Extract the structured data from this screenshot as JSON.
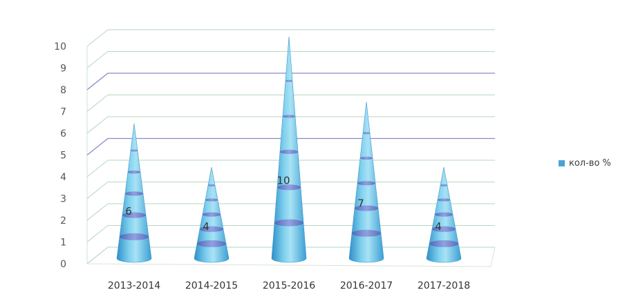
{
  "chart_data": {
    "type": "bar",
    "bar_shape": "cone",
    "categories": [
      "2013-2014",
      "2014-2015",
      "2015-2016",
      "2016-2017",
      "2017-2018"
    ],
    "series": [
      {
        "name": "кол-во %",
        "values": [
          6,
          4,
          10,
          7,
          4
        ]
      }
    ],
    "data_labels": [
      "6",
      "4",
      "10",
      "7",
      "4"
    ],
    "yticks": [
      "0",
      "1",
      "2",
      "3",
      "4",
      "5",
      "6",
      "7",
      "8",
      "9",
      "10"
    ],
    "ylim": [
      0,
      10
    ],
    "grid": true,
    "legend": "right",
    "colors": {
      "cone": "#5ab4de",
      "band": "#6f6fc4",
      "grid": "#b6d7bd",
      "purple_line": "#8888cc"
    }
  }
}
